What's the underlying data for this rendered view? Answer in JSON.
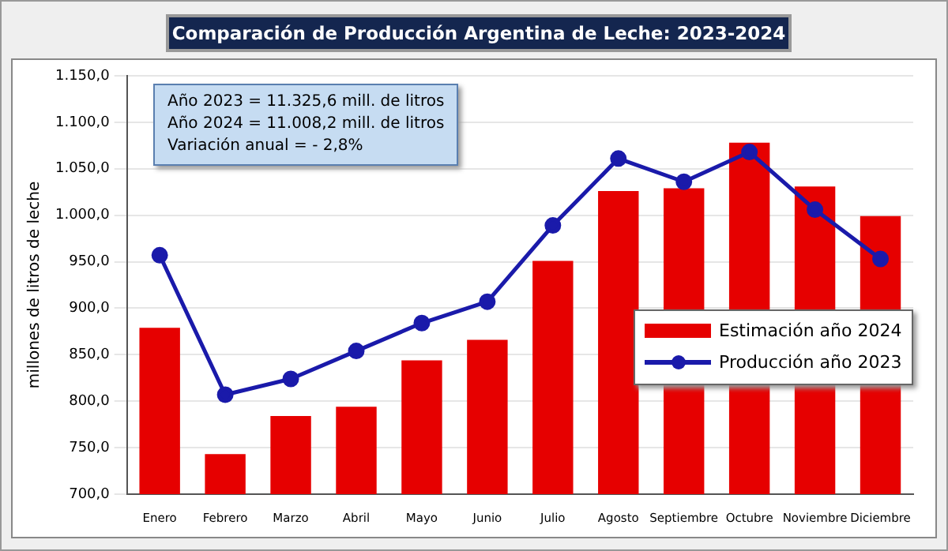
{
  "chart_data": {
    "type": "bar",
    "title": "Comparación de Producción Argentina de Leche: 2023-2024",
    "ylabel": "millones de litros de leche",
    "categories": [
      "Enero",
      "Febrero",
      "Marzo",
      "Abril",
      "Mayo",
      "Junio",
      "Julio",
      "Agosto",
      "Septiembre",
      "Octubre",
      "Noviembre",
      "Diciembre"
    ],
    "series": [
      {
        "name": "Estimación año 2024",
        "color": "#e60000",
        "values": [
          879,
          743,
          784,
          794,
          844,
          866,
          951,
          1026,
          1029,
          1078,
          1031,
          999
        ]
      },
      {
        "name": "Producción año 2023",
        "type": "line",
        "color": "#1a1aaa",
        "values": [
          957,
          807,
          824,
          854,
          884,
          907,
          989,
          1061,
          1036,
          1068,
          1006,
          953
        ]
      }
    ],
    "ylim": [
      700,
      1150
    ],
    "yticks": [
      {
        "value": 700,
        "label": "700,0"
      },
      {
        "value": 750,
        "label": "750,0"
      },
      {
        "value": 800,
        "label": "800,0"
      },
      {
        "value": 850,
        "label": "850,0"
      },
      {
        "value": 900,
        "label": "900,0"
      },
      {
        "value": 950,
        "label": "950,0"
      },
      {
        "value": 1000,
        "label": "1.000,0"
      },
      {
        "value": 1050,
        "label": "1.050,0"
      },
      {
        "value": 1100,
        "label": "1.100,0"
      },
      {
        "value": 1150,
        "label": "1.150,0"
      }
    ],
    "grid": "y",
    "legend": "right",
    "marker": "circle",
    "line_style": "solid",
    "annotations": [
      "Año 2023 =  11.325,6 mill. de litros",
      "Año 2024 = 11.008,2 mill. de litros",
      "Variación anual = - 2,8%"
    ]
  }
}
